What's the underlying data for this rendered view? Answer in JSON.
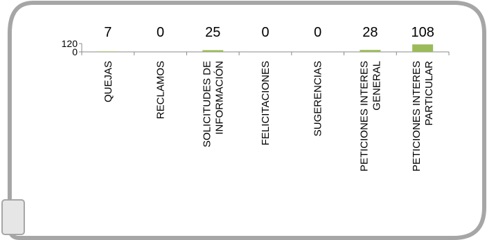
{
  "chart_data": {
    "type": "bar",
    "categories": [
      [
        "QUEJAS"
      ],
      [
        "RECLAMOS"
      ],
      [
        "SOLICITUDES DE",
        "INFORMACIÓN"
      ],
      [
        "FELICITACIONES"
      ],
      [
        "SUGERENCIAS"
      ],
      [
        "PETICIONES INTERES",
        "GENERAL"
      ],
      [
        "PETICIONES INTERES",
        "PARTICULAR"
      ]
    ],
    "values": [
      7,
      0,
      25,
      0,
      0,
      28,
      108
    ],
    "data_labels": [
      "7",
      "0",
      "25",
      "0",
      "0",
      "28",
      "108"
    ],
    "y_ticks": [
      "120",
      "0"
    ],
    "ylim": [
      0,
      120
    ],
    "bar_color": "#9BBB59",
    "border_color": "#A6A6A6"
  }
}
